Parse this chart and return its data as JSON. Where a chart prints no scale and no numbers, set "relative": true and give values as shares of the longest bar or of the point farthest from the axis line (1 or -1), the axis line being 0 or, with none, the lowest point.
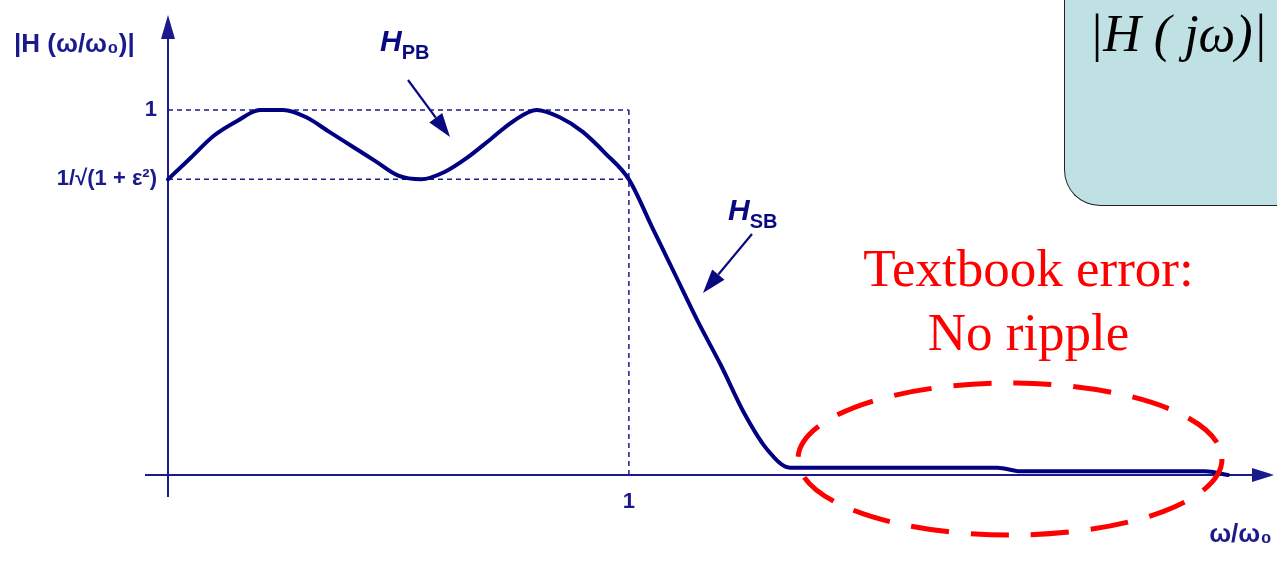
{
  "chart_data": {
    "type": "line",
    "relative": true,
    "xlabel": "ω/ω₀",
    "ylabel": "|H (ω/ω₀)|",
    "categories": [
      null,
      null,
      null,
      null,
      null,
      null,
      null,
      null,
      null,
      null,
      null,
      null,
      null,
      null,
      null,
      null,
      null,
      null,
      null,
      null,
      null,
      null,
      null,
      null,
      null,
      null,
      null,
      null,
      null,
      null,
      null,
      null,
      null,
      null,
      null,
      null,
      null,
      null,
      null,
      null,
      null,
      null,
      null,
      null,
      null,
      null,
      null
    ],
    "series": [
      {
        "color": "#000080",
        "values": [
          0.81,
          0.87,
          0.93,
          0.97,
          1,
          1,
          0.98,
          0.94,
          0.9,
          0.86,
          0.82,
          0.81,
          0.83,
          0.87,
          0.92,
          0.97,
          1,
          0.98,
          0.94,
          0.88,
          0.81,
          0.68,
          0.55,
          0.42,
          0.3,
          0.17,
          0.07,
          0.02,
          0.02,
          0.02,
          0.02,
          0.02,
          0.02,
          0.02,
          0.02,
          0.02,
          0.02,
          0.01,
          0.01,
          0.01,
          0.01,
          0.01,
          0.01,
          0.01,
          0.01,
          0.01,
          0
        ]
      }
    ],
    "ref_lines": [
      {
        "axis": "y",
        "value": 1,
        "label": "1",
        "color": "#1a1a8c",
        "line_style": "dashed"
      },
      {
        "axis": "y",
        "value": 0.81,
        "label": "1/√(1 + ε²)",
        "color": "#1a1a8c",
        "line_style": "dashed"
      }
    ],
    "annotations": [
      "H$_{PB}$",
      "H$_{SB}$",
      "Textbook error: No ripple",
      "1",
      "|H ( jω)|"
    ]
  }
}
